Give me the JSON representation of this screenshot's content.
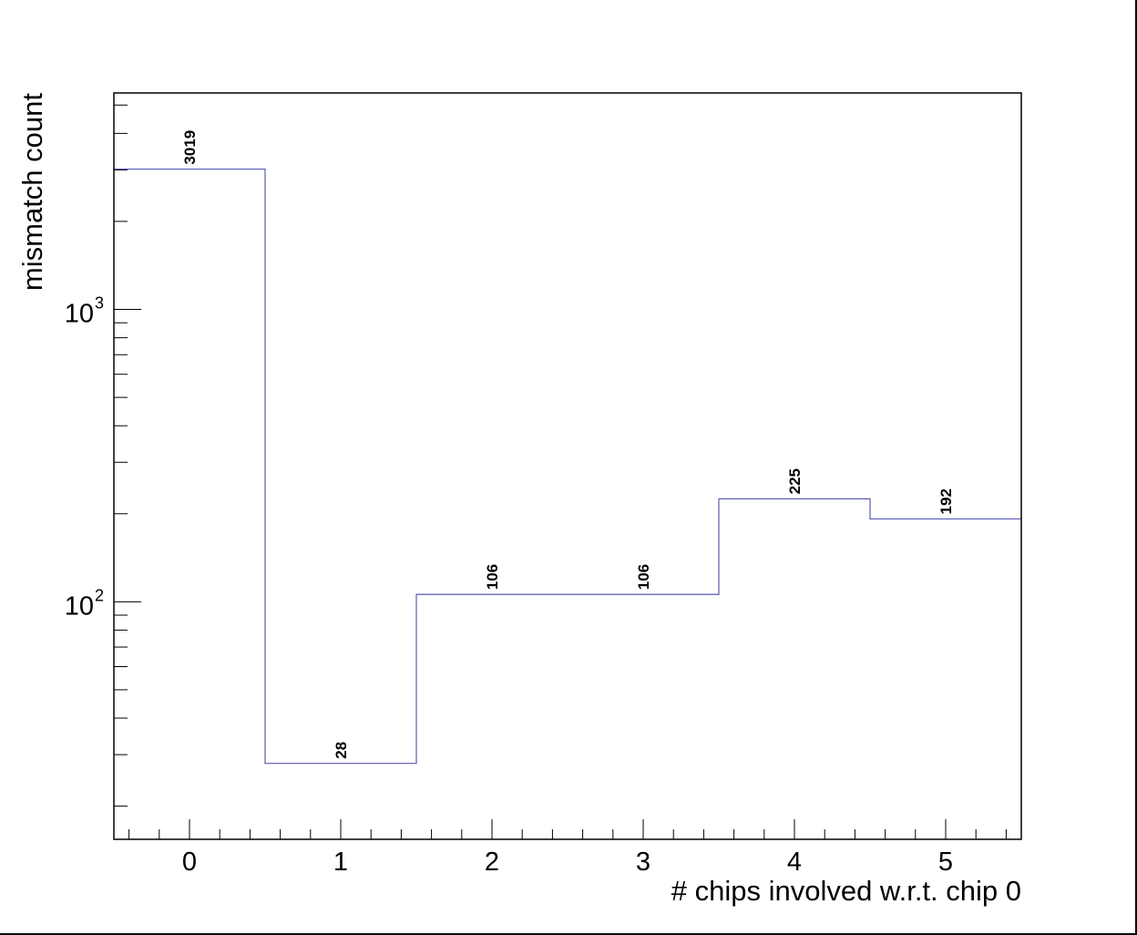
{
  "chart_data": {
    "type": "histogram",
    "xlabel": "# chips involved w.r.t. chip 0",
    "ylabel": "mismatch count",
    "x_range": [
      -0.5,
      5.5
    ],
    "y_scale": "log",
    "ylim": [
      15.4,
      5500
    ],
    "bins": [
      0,
      1,
      2,
      3,
      4,
      5
    ],
    "values": [
      3019,
      28,
      106,
      106,
      225,
      192
    ],
    "value_labels": [
      "3019",
      "28",
      "106",
      "106",
      "225",
      "192"
    ],
    "x_tick_labels": [
      "0",
      "1",
      "2",
      "3",
      "4",
      "5"
    ],
    "y_major_ticks": [
      {
        "value": 100,
        "base": "10",
        "exp": "2"
      },
      {
        "value": 1000,
        "base": "10",
        "exp": "3"
      }
    ],
    "line_color": "#5a5ab8",
    "grid": false,
    "legend": "none"
  }
}
